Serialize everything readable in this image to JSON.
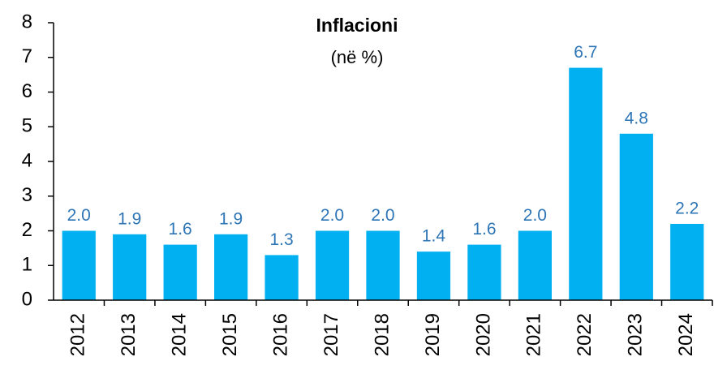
{
  "chart_data": {
    "type": "bar",
    "title": "Inflacioni",
    "subtitle": "(në %)",
    "categories": [
      "2012",
      "2013",
      "2014",
      "2015",
      "2016",
      "2017",
      "2018",
      "2019",
      "2020",
      "2021",
      "2022",
      "2023",
      "2024"
    ],
    "values": [
      2.0,
      1.9,
      1.6,
      1.9,
      1.3,
      2.0,
      2.0,
      1.4,
      1.6,
      2.0,
      6.7,
      4.8,
      2.2
    ],
    "value_labels": [
      "2.0",
      "1.9",
      "1.6",
      "1.9",
      "1.3",
      "2.0",
      "2.0",
      "1.4",
      "1.6",
      "2.0",
      "6.7",
      "4.8",
      "2.2"
    ],
    "color": "#00b0f0",
    "label_color": "#2e75b6",
    "ylim": [
      0,
      8
    ],
    "yticks": [
      0,
      1,
      2,
      3,
      4,
      5,
      6,
      7,
      8
    ],
    "grid": false
  }
}
